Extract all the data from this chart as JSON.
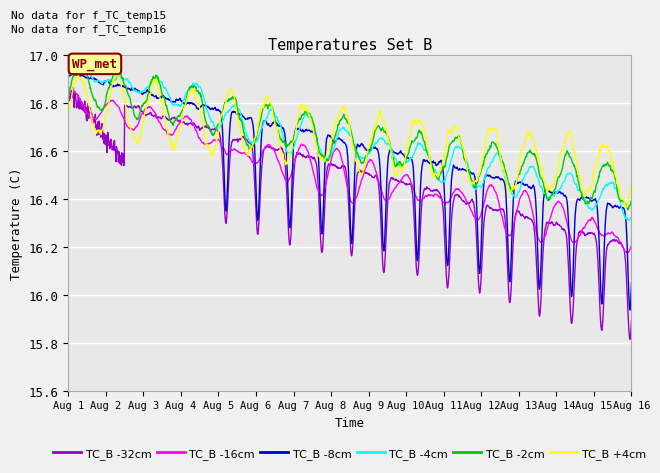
{
  "title": "Temperatures Set B",
  "xlabel": "Time",
  "ylabel": "Temperature (C)",
  "ylim": [
    15.6,
    17.0
  ],
  "yticks": [
    15.6,
    15.8,
    16.0,
    16.2,
    16.4,
    16.6,
    16.8,
    17.0
  ],
  "xtick_labels": [
    "Aug 1",
    "Aug 2",
    "Aug 3",
    "Aug 4",
    "Aug 5",
    "Aug 6",
    "Aug 7",
    "Aug 8",
    "Aug 9",
    "Aug 10",
    "Aug 11",
    "Aug 12",
    "Aug 13",
    "Aug 14",
    "Aug 15",
    "Aug 16"
  ],
  "text_no_data1": "No data for f_TC_temp15",
  "text_no_data2": "No data for f_TC_temp16",
  "wp_met_label": "WP_met",
  "legend_labels": [
    "TC_B -32cm",
    "TC_B -16cm",
    "TC_B -8cm",
    "TC_B -4cm",
    "TC_B -2cm",
    "TC_B +4cm"
  ],
  "line_colors": [
    "#9900cc",
    "#ff00ff",
    "#0000cc",
    "#00ffff",
    "#00cc00",
    "#ffff00"
  ],
  "line_widths": [
    1.0,
    1.0,
    1.0,
    1.0,
    1.0,
    1.0
  ],
  "plot_bg_color": "#e8e8e8",
  "fig_bg_color": "#f0f0f0",
  "n_points": 1440,
  "seed": 42
}
